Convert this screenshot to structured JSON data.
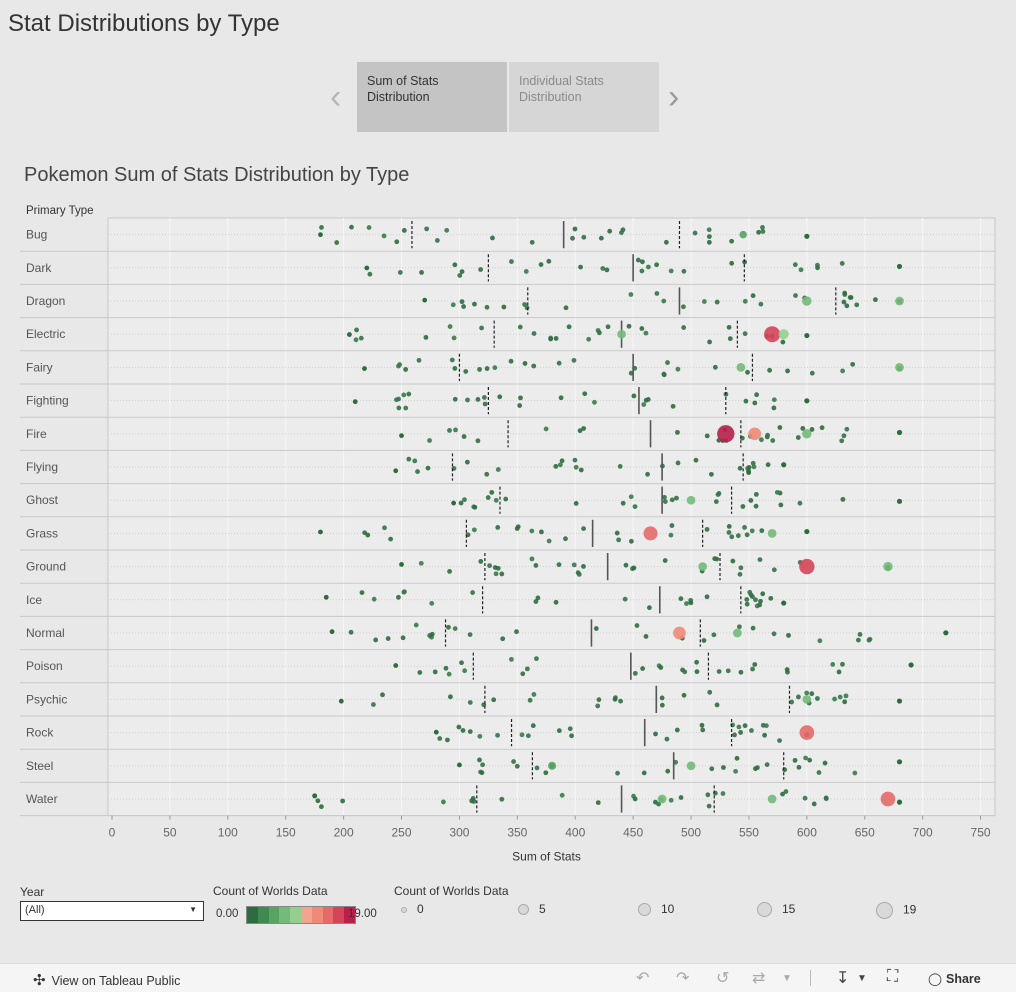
{
  "page_title": "Stat Distributions by Type",
  "nav": {
    "prev_icon": "chevron-left-icon",
    "next_icon": "chevron-right-icon",
    "tabs": [
      {
        "label_line1": "Sum of Stats",
        "label_line2": "Distribution",
        "selected": true
      },
      {
        "label_line1": "Individual Stats",
        "label_line2": "Distribution",
        "selected": false
      }
    ]
  },
  "chart_title": "Pokemon Sum of Stats Distribution by Type",
  "chart_data": {
    "type": "scatter",
    "row_header": "Primary Type",
    "xlabel": "Sum of Stats",
    "xlim": [
      0,
      760
    ],
    "xticks": [
      0,
      50,
      100,
      150,
      200,
      250,
      300,
      350,
      400,
      450,
      500,
      550,
      600,
      650,
      700,
      750
    ],
    "categories": [
      "Bug",
      "Dark",
      "Dragon",
      "Electric",
      "Fairy",
      "Fighting",
      "Fire",
      "Flying",
      "Ghost",
      "Grass",
      "Ground",
      "Ice",
      "Normal",
      "Poison",
      "Psychic",
      "Rock",
      "Steel",
      "Water"
    ],
    "quartiles": [
      [
        259,
        390,
        490
      ],
      [
        325,
        450,
        546
      ],
      [
        359,
        490,
        625
      ],
      [
        330,
        440,
        540
      ],
      [
        300,
        450,
        553
      ],
      [
        325,
        455,
        530
      ],
      [
        342,
        465,
        543
      ],
      [
        294,
        475,
        545
      ],
      [
        335,
        475,
        535
      ],
      [
        306,
        415,
        510
      ],
      [
        322,
        428,
        525
      ],
      [
        320,
        473,
        543
      ],
      [
        288,
        414,
        508
      ],
      [
        312,
        448,
        515
      ],
      [
        322,
        470,
        585
      ],
      [
        345,
        460,
        535
      ],
      [
        363,
        485,
        580
      ],
      [
        315,
        440,
        520
      ]
    ],
    "extremes": [
      [
        180,
        600
      ],
      [
        220,
        680
      ],
      [
        270,
        680
      ],
      [
        205,
        600
      ],
      [
        218,
        680
      ],
      [
        210,
        600
      ],
      [
        250,
        680
      ],
      [
        245,
        580
      ],
      [
        295,
        680
      ],
      [
        180,
        600
      ],
      [
        250,
        670
      ],
      [
        185,
        580
      ],
      [
        190,
        720
      ],
      [
        245,
        690
      ],
      [
        198,
        680
      ],
      [
        280,
        600
      ],
      [
        300,
        680
      ],
      [
        175,
        680
      ]
    ],
    "highlights": [
      {
        "type": "Electric",
        "sum": 570,
        "count": 17
      },
      {
        "type": "Fire",
        "sum": 530,
        "count": 19
      },
      {
        "type": "Fire",
        "sum": 555,
        "count": 12
      },
      {
        "type": "Grass",
        "sum": 465,
        "count": 14
      },
      {
        "type": "Ground",
        "sum": 600,
        "count": 16
      },
      {
        "type": "Ground",
        "sum": 670,
        "count": 7
      },
      {
        "type": "Normal",
        "sum": 490,
        "count": 12
      },
      {
        "type": "Rock",
        "sum": 600,
        "count": 15
      },
      {
        "type": "Water",
        "sum": 670,
        "count": 15
      },
      {
        "type": "Bug",
        "sum": 545,
        "count": 4
      },
      {
        "type": "Dragon",
        "sum": 600,
        "count": 7
      },
      {
        "type": "Dragon",
        "sum": 680,
        "count": 6
      },
      {
        "type": "Electric",
        "sum": 580,
        "count": 8
      },
      {
        "type": "Electric",
        "sum": 440,
        "count": 6
      },
      {
        "type": "Fairy",
        "sum": 543,
        "count": 6
      },
      {
        "type": "Fairy",
        "sum": 680,
        "count": 6
      },
      {
        "type": "Fire",
        "sum": 600,
        "count": 7
      },
      {
        "type": "Ghost",
        "sum": 500,
        "count": 6
      },
      {
        "type": "Grass",
        "sum": 570,
        "count": 6
      },
      {
        "type": "Ground",
        "sum": 510,
        "count": 6
      },
      {
        "type": "Normal",
        "sum": 540,
        "count": 6
      },
      {
        "type": "Psychic",
        "sum": 600,
        "count": 6
      },
      {
        "type": "Steel",
        "sum": 500,
        "count": 6
      },
      {
        "type": "Steel",
        "sum": 380,
        "count": 5
      },
      {
        "type": "Water",
        "sum": 570,
        "count": 6
      },
      {
        "type": "Water",
        "sum": 475,
        "count": 6
      }
    ],
    "legend_position": "bottom"
  },
  "filters": {
    "year_label": "Year",
    "year_value": "(All)"
  },
  "color_legend": {
    "title": "Count of Worlds Data",
    "min_label": "0.00",
    "max_label": "19.00",
    "colors": [
      "#2e6b3e",
      "#3f8a50",
      "#57a463",
      "#74ba79",
      "#95cf8f",
      "#f2a58e",
      "#ef8a79",
      "#e66a6a",
      "#d4455a",
      "#b8204a"
    ]
  },
  "size_legend": {
    "title": "Count of Worlds Data",
    "values": [
      "0",
      "5",
      "10",
      "15",
      "19"
    ]
  },
  "footer": {
    "view_label": "View on Tableau Public",
    "share_label": "Share"
  }
}
